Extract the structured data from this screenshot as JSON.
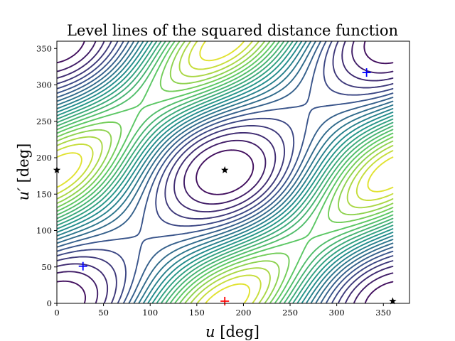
{
  "chart_data": {
    "type": "contour",
    "title": "Level lines of the squared distance function",
    "xlabel": {
      "symbol": "u",
      "unit": " [deg]"
    },
    "ylabel": {
      "symbol": "u′",
      "unit": " [deg]"
    },
    "xlim": [
      0,
      378
    ],
    "ylim": [
      0,
      360
    ],
    "xticks": [
      0,
      50,
      100,
      150,
      200,
      250,
      300,
      350
    ],
    "yticks": [
      0,
      50,
      100,
      150,
      200,
      250,
      300,
      350
    ],
    "colormap": [
      "#440154",
      "#3b528b",
      "#21918c",
      "#5ec962",
      "#fde725"
    ],
    "minima": [
      {
        "x": 180,
        "y": 3,
        "marker": "plus",
        "color": "#ff0000"
      },
      {
        "x": 28,
        "y": 51,
        "marker": "plus",
        "color": "#0000ff"
      },
      {
        "x": 332,
        "y": 317,
        "marker": "plus",
        "color": "#0000ff"
      }
    ],
    "saddles": [
      {
        "x": 0,
        "y": 183,
        "marker": "star",
        "color": "#000000"
      },
      {
        "x": 180,
        "y": 183,
        "marker": "star",
        "color": "#000000"
      },
      {
        "x": 360,
        "y": 3,
        "marker": "star",
        "color": "#000000"
      }
    ]
  }
}
